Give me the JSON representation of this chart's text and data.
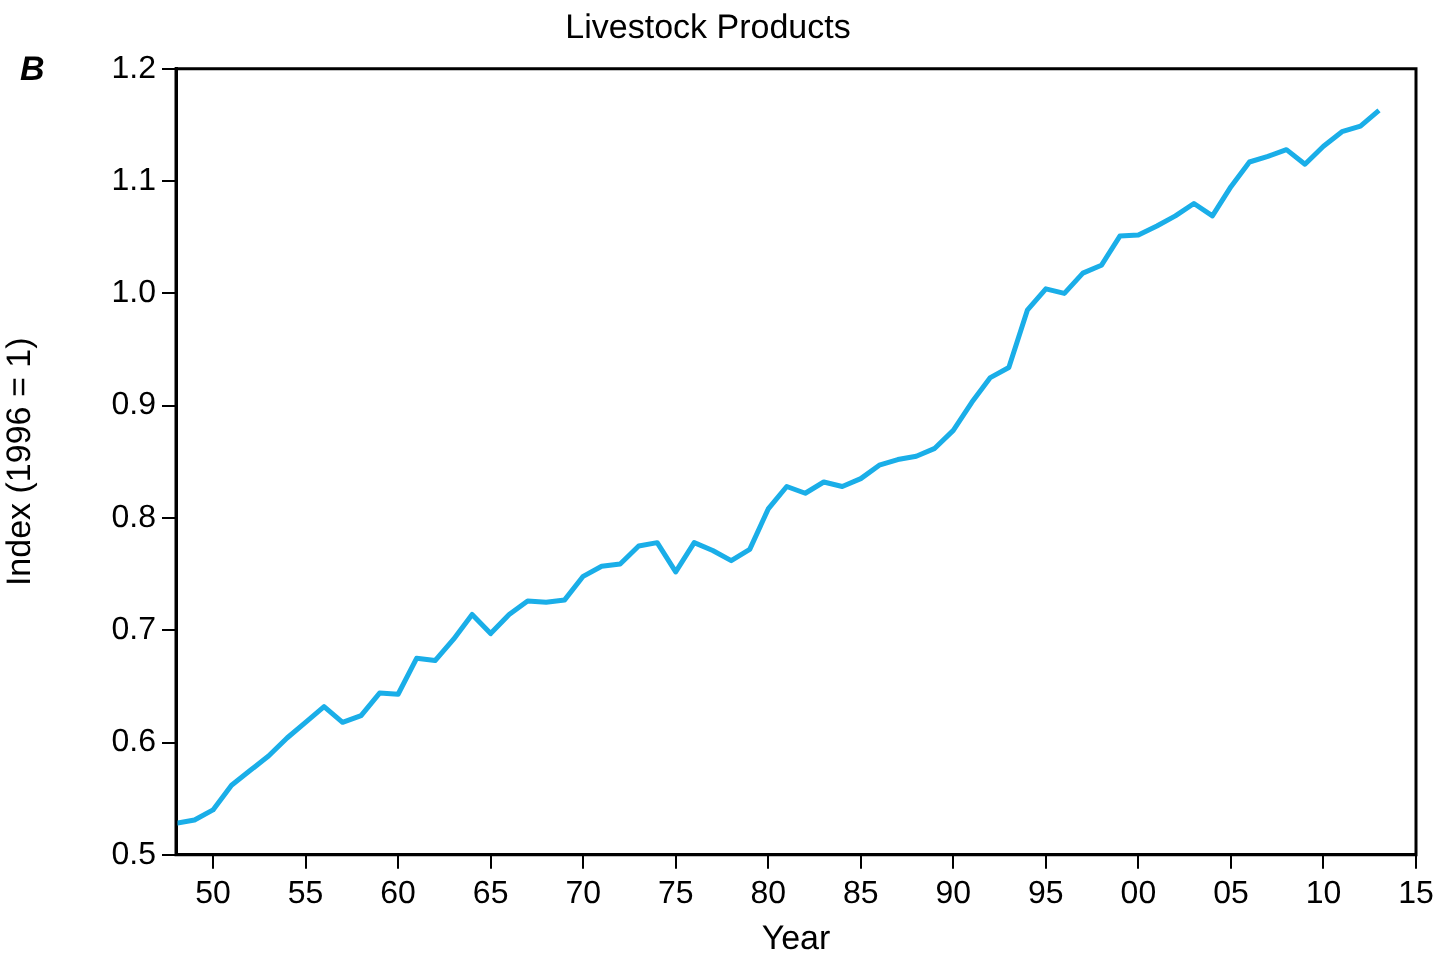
{
  "chart_data": {
    "type": "line",
    "title": "Livestock Products",
    "xlabel": "Year",
    "ylabel": "Index (1996 = 1)",
    "annotations": [
      "B"
    ],
    "x": [
      1948,
      1949,
      1950,
      1951,
      1952,
      1953,
      1954,
      1955,
      1956,
      1957,
      1958,
      1959,
      1960,
      1961,
      1962,
      1963,
      1964,
      1965,
      1966,
      1967,
      1968,
      1969,
      1970,
      1971,
      1972,
      1973,
      1974,
      1975,
      1976,
      1977,
      1978,
      1979,
      1980,
      1981,
      1982,
      1983,
      1984,
      1985,
      1986,
      1987,
      1988,
      1989,
      1990,
      1991,
      1992,
      1993,
      1994,
      1995,
      1996,
      1997,
      1998,
      1999,
      2000,
      2001,
      2002,
      2003,
      2004,
      2005,
      2006,
      2007,
      2008,
      2009,
      2010,
      2011,
      2012,
      2013
    ],
    "series": [
      {
        "color": "#1aaee8",
        "values": [
          0.528,
          0.531,
          0.54,
          0.562,
          0.575,
          0.588,
          0.604,
          0.618,
          0.632,
          0.618,
          0.624,
          0.644,
          0.643,
          0.675,
          0.673,
          0.692,
          0.714,
          0.697,
          0.714,
          0.726,
          0.725,
          0.727,
          0.748,
          0.757,
          0.759,
          0.775,
          0.778,
          0.752,
          0.778,
          0.771,
          0.762,
          0.772,
          0.808,
          0.828,
          0.822,
          0.832,
          0.828,
          0.835,
          0.847,
          0.852,
          0.855,
          0.862,
          0.878,
          0.903,
          0.925,
          0.934,
          0.985,
          1.004,
          1.0,
          1.018,
          1.025,
          1.051,
          1.052,
          1.06,
          1.069,
          1.08,
          1.069,
          1.095,
          1.117,
          1.122,
          1.128,
          1.115,
          1.131,
          1.144,
          1.149,
          1.163
        ]
      }
    ],
    "xlim": [
      1948,
      2015
    ],
    "xticks": [
      {
        "value": 1950,
        "label": "50"
      },
      {
        "value": 1955,
        "label": "55"
      },
      {
        "value": 1960,
        "label": "60"
      },
      {
        "value": 1965,
        "label": "65"
      },
      {
        "value": 1970,
        "label": "70"
      },
      {
        "value": 1975,
        "label": "75"
      },
      {
        "value": 1980,
        "label": "80"
      },
      {
        "value": 1985,
        "label": "85"
      },
      {
        "value": 1990,
        "label": "90"
      },
      {
        "value": 1995,
        "label": "95"
      },
      {
        "value": 2000,
        "label": "00"
      },
      {
        "value": 2005,
        "label": "05"
      },
      {
        "value": 2010,
        "label": "10"
      },
      {
        "value": 2015,
        "label": "15"
      }
    ],
    "ylim": [
      0.5,
      1.2
    ],
    "yticks": [
      {
        "value": 0.5,
        "label": "0.5"
      },
      {
        "value": 0.6,
        "label": "0.6"
      },
      {
        "value": 0.7,
        "label": "0.7"
      },
      {
        "value": 0.8,
        "label": "0.8"
      },
      {
        "value": 0.9,
        "label": "0.9"
      },
      {
        "value": 1.0,
        "label": "1.0"
      },
      {
        "value": 1.1,
        "label": "1.1"
      },
      {
        "value": 1.2,
        "label": "1.2"
      }
    ],
    "grid": false,
    "legend": false,
    "marker": "none",
    "line_style": "solid"
  }
}
